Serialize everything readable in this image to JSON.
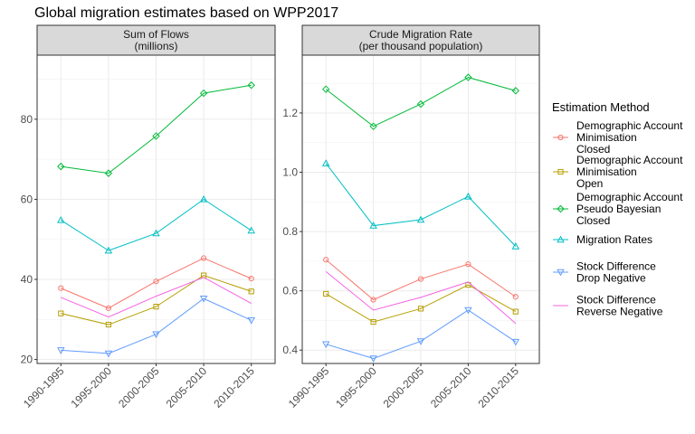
{
  "chart_data": {
    "type": "line",
    "title": "Global migration estimates based on WPP2017",
    "categories": [
      "1990-1995",
      "1995-2000",
      "2000-2005",
      "2005-2010",
      "2010-2015"
    ],
    "legend": {
      "title": "Estimation Method",
      "position": "right"
    },
    "grid": true,
    "series_styles": [
      {
        "name": "Demographic Account\nMinimisation\nClosed",
        "color": "#F8766D",
        "marker": "circle"
      },
      {
        "name": "Demographic Account\nMinimisation\nOpen",
        "color": "#B79F00",
        "marker": "square"
      },
      {
        "name": "Demographic Account\nPseudo Bayesian\nClosed",
        "color": "#00BA38",
        "marker": "diamond"
      },
      {
        "name": "Migration Rates",
        "color": "#00BFC4",
        "marker": "triangle-up"
      },
      {
        "name": "Stock Difference\nDrop Negative",
        "color": "#619CFF",
        "marker": "triangle-down"
      },
      {
        "name": "Stock Difference\nReverse Negative",
        "color": "#F564E3",
        "marker": "none"
      }
    ],
    "panels": [
      {
        "strip": [
          "Sum of Flows",
          "(millions)"
        ],
        "ylim": [
          19,
          96
        ],
        "yticks": [
          20,
          40,
          60,
          80
        ],
        "series": [
          {
            "name": "Demographic Account\nMinimisation\nClosed",
            "values": [
              37.8,
              32.8,
              39.5,
              45.3,
              40.2
            ]
          },
          {
            "name": "Demographic Account\nMinimisation\nOpen",
            "values": [
              31.5,
              28.7,
              33.2,
              41.0,
              37.0
            ]
          },
          {
            "name": "Demographic Account\nPseudo Bayesian\nClosed",
            "values": [
              68.2,
              66.5,
              75.8,
              86.5,
              88.5
            ]
          },
          {
            "name": "Migration Rates",
            "values": [
              54.8,
              47.2,
              51.5,
              60.0,
              52.2
            ]
          },
          {
            "name": "Stock Difference\nDrop Negative",
            "values": [
              22.3,
              21.5,
              26.3,
              35.2,
              29.8
            ]
          },
          {
            "name": "Stock Difference\nReverse Negative",
            "values": [
              35.5,
              30.6,
              35.8,
              40.5,
              34.0
            ]
          }
        ]
      },
      {
        "strip": [
          "Crude Migration Rate",
          "(per thousand population)"
        ],
        "ylim": [
          0.355,
          1.395
        ],
        "yticks": [
          0.4,
          0.6,
          0.8,
          1.0,
          1.2
        ],
        "ytick_labels": [
          "0.4",
          "0.6",
          "0.8",
          "1.0",
          "1.2"
        ],
        "series": [
          {
            "name": "Demographic Account\nMinimisation\nClosed",
            "values": [
              0.705,
              0.57,
              0.64,
              0.69,
              0.58
            ]
          },
          {
            "name": "Demographic Account\nMinimisation\nOpen",
            "values": [
              0.59,
              0.495,
              0.54,
              0.62,
              0.53
            ]
          },
          {
            "name": "Demographic Account\nPseudo Bayesian\nClosed",
            "values": [
              1.28,
              1.155,
              1.23,
              1.32,
              1.275
            ]
          },
          {
            "name": "Migration Rates",
            "values": [
              1.03,
              0.82,
              0.84,
              0.918,
              0.75
            ]
          },
          {
            "name": "Stock Difference\nDrop Negative",
            "values": [
              0.42,
              0.372,
              0.43,
              0.535,
              0.428
            ]
          },
          {
            "name": "Stock Difference\nReverse Negative",
            "values": [
              0.665,
              0.535,
              0.578,
              0.63,
              0.49
            ]
          }
        ]
      }
    ]
  }
}
